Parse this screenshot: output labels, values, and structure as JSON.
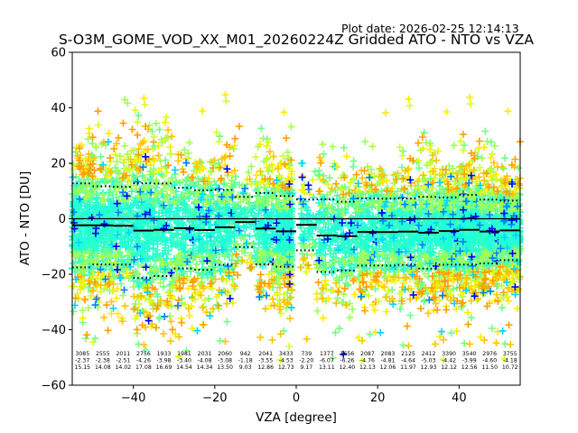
{
  "plot_date": "Plot date: 2026-02-25 12:14:13",
  "colors": {
    "palette": [
      "#40ffb7",
      "#20ffd7",
      "#70ff87",
      "#a0ff57",
      "#d7ff20",
      "#ffeb00",
      "#ffc400",
      "#ff9f00",
      "#00d4ff",
      "#0080ff",
      "#0000ff"
    ],
    "mean_line": "#000000",
    "zero_line": "#000000"
  },
  "chart_data": {
    "type": "scatter",
    "title": "S-O3M_GOME_VOD_XX_M01_20260224Z Gridded ATO - NTO vs VZA",
    "xlabel": "VZA [degree]",
    "ylabel": "ATO - NTO [DU]",
    "xlim": [
      -55,
      55
    ],
    "ylim": [
      -60,
      60
    ],
    "xticks": [
      -40,
      -20,
      0,
      20,
      40
    ],
    "yticks": [
      -60,
      -40,
      -20,
      0,
      20,
      40,
      60
    ],
    "marker": "+",
    "bins": [
      {
        "center": -52.5,
        "count": "3085",
        "mean": "-2.37",
        "std": "15.15"
      },
      {
        "center": -47.5,
        "count": "2555",
        "mean": "-2.38",
        "std": "14.08"
      },
      {
        "center": -42.5,
        "count": "2011",
        "mean": "-2.51",
        "std": "14.02"
      },
      {
        "center": -37.5,
        "count": "2756",
        "mean": "-4.26",
        "std": "17.08"
      },
      {
        "center": -32.5,
        "count": "1933",
        "mean": "-3.98",
        "std": "16.69"
      },
      {
        "center": -27.5,
        "count": "1981",
        "mean": "-3.40",
        "std": "14.54"
      },
      {
        "center": -22.5,
        "count": "2031",
        "mean": "-4.08",
        "std": "14.34"
      },
      {
        "center": -17.5,
        "count": "2060",
        "mean": "-3.08",
        "std": "13.50"
      },
      {
        "center": -12.5,
        "count": "942",
        "mean": "-1.18",
        "std": "9.03"
      },
      {
        "center": -7.5,
        "count": "2041",
        "mean": "-3.55",
        "std": "12.86"
      },
      {
        "center": -2.5,
        "count": "3433",
        "mean": "-4.53",
        "std": "12.73"
      },
      {
        "center": 2.5,
        "count": "739",
        "mean": "-2.20",
        "std": "9.17"
      },
      {
        "center": 7.5,
        "count": "1377",
        "mean": "-6.07",
        "std": "13.11"
      },
      {
        "center": 12.5,
        "count": "1656",
        "mean": "-6.26",
        "std": "12.40"
      },
      {
        "center": 17.5,
        "count": "2087",
        "mean": "-4.76",
        "std": "12.13"
      },
      {
        "center": 22.5,
        "count": "2083",
        "mean": "-4.81",
        "std": "12.06"
      },
      {
        "center": 27.5,
        "count": "2125",
        "mean": "-4.64",
        "std": "11.97"
      },
      {
        "center": 32.5,
        "count": "2412",
        "mean": "-5.03",
        "std": "12.93"
      },
      {
        "center": 37.5,
        "count": "3390",
        "mean": "-4.42",
        "std": "12.12"
      },
      {
        "center": 42.5,
        "count": "3540",
        "mean": "-3.99",
        "std": "12.56"
      },
      {
        "center": 47.5,
        "count": "2976",
        "mean": "-4.60",
        "std": "11.50"
      },
      {
        "center": 52.5,
        "count": "3755",
        "mean": "-4.18",
        "std": "10.72"
      }
    ]
  }
}
